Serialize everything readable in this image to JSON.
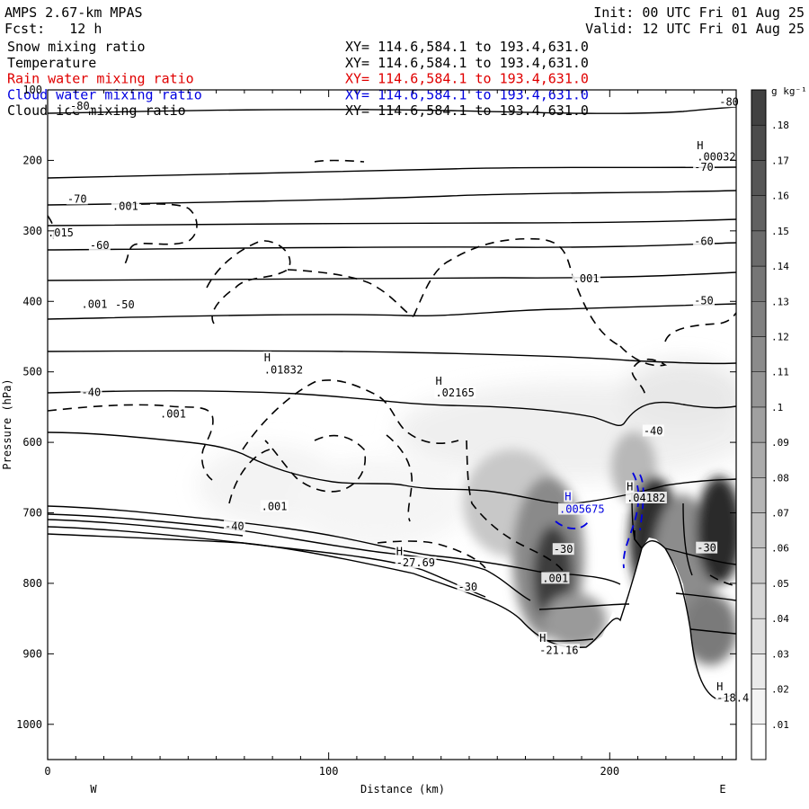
{
  "header": {
    "model": "AMPS 2.67-km MPAS",
    "forecast": "Fcst:   12 h",
    "init": "Init: 00 UTC Fri 01 Aug 25",
    "valid": "Valid: 12 UTC Fri 01 Aug 25"
  },
  "legend_rows": [
    {
      "field": "Snow mixing ratio",
      "xy": "XY= 114.6,584.1 to 193.4,631.0",
      "color": "#000000"
    },
    {
      "field": "Temperature",
      "xy": "XY= 114.6,584.1 to 193.4,631.0",
      "color": "#000000"
    },
    {
      "field": "Rain water mixing ratio",
      "xy": "XY= 114.6,584.1 to 193.4,631.0",
      "color": "#e00000"
    },
    {
      "field": "Cloud water mixing ratio",
      "xy": "XY= 114.6,584.1 to 193.4,631.0",
      "color": "#0000e0"
    },
    {
      "field": "Cloud ice mixing ratio",
      "xy": "XY= 114.6,584.1 to 193.4,631.0",
      "color": "#000000"
    }
  ],
  "chart_data": {
    "type": "cross-section",
    "xlabel": "Distance (km)",
    "ylabel": "Pressure (hPa)",
    "xlim": [
      0,
      245
    ],
    "ylim": [
      1050,
      100
    ],
    "x_ticks": [
      0,
      100,
      200
    ],
    "y_ticks": [
      100,
      200,
      300,
      400,
      500,
      600,
      700,
      800,
      900,
      1000
    ],
    "orientation": {
      "left": "W",
      "right": "E"
    },
    "colorbar": {
      "unit": "g kg⁻¹",
      "levels": [
        ".01",
        ".02",
        ".03",
        ".04",
        ".05",
        ".06",
        ".07",
        ".08",
        ".09",
        ".1",
        ".11",
        ".12",
        ".13",
        ".14",
        ".15",
        ".16",
        ".17",
        ".18"
      ],
      "shading": "grayscale"
    },
    "temperature_contour_labels": [
      {
        "text": "-80",
        "x": 8,
        "p": 128
      },
      {
        "text": "-80",
        "x": 239,
        "p": 122
      },
      {
        "text": "-70",
        "x": 7,
        "p": 260
      },
      {
        "text": "-70",
        "x": 230,
        "p": 215
      },
      {
        "text": "-60",
        "x": 15,
        "p": 326
      },
      {
        "text": "-60",
        "x": 230,
        "p": 320
      },
      {
        "text": "-50",
        "x": 24,
        "p": 410
      },
      {
        "text": "-50",
        "x": 230,
        "p": 404
      },
      {
        "text": "-40",
        "x": 12,
        "p": 534
      },
      {
        "text": "-40",
        "x": 212,
        "p": 589
      },
      {
        "text": "-40",
        "x": 63,
        "p": 724
      },
      {
        "text": "-30",
        "x": 180,
        "p": 757
      },
      {
        "text": "-30",
        "x": 146,
        "p": 810
      },
      {
        "text": "-30",
        "x": 231,
        "p": 755
      }
    ],
    "extrema_labels": [
      {
        "text": "H",
        "x": 231,
        "p": 184
      },
      {
        "text": ".00032",
        "x": 231,
        "p": 200
      },
      {
        "text": "H",
        "x": 77,
        "p": 485
      },
      {
        "text": ".01832",
        "x": 77,
        "p": 502
      },
      {
        "text": "H",
        "x": 138,
        "p": 518
      },
      {
        "text": ".02165",
        "x": 138,
        "p": 535
      },
      {
        "text": "H",
        "x": 124,
        "p": 760
      },
      {
        "text": "-27.69",
        "x": 124,
        "p": 776
      },
      {
        "text": "H",
        "x": 175,
        "p": 883
      },
      {
        "text": "-21.16",
        "x": 175,
        "p": 900
      },
      {
        "text": "H",
        "x": 238,
        "p": 952
      },
      {
        "text": "-18.4",
        "x": 238,
        "p": 968
      },
      {
        "text": "H",
        "x": 206,
        "p": 668
      },
      {
        "text": ".04182",
        "x": 206,
        "p": 684
      }
    ],
    "cloud_water_labels": [
      {
        "text": "H",
        "x": 184,
        "p": 682
      },
      {
        "text": ".005675",
        "x": 182,
        "p": 700
      }
    ],
    "ice_dash_labels": [
      {
        "text": ".001",
        "x": 23,
        "p": 270
      },
      {
        "text": ".015",
        "x": 0,
        "p": 308
      },
      {
        "text": ".001",
        "x": 12,
        "p": 409
      },
      {
        "text": ".001",
        "x": 187,
        "p": 373
      },
      {
        "text": ".001",
        "x": 40,
        "p": 565
      },
      {
        "text": ".001",
        "x": 76,
        "p": 696
      },
      {
        "text": ".001",
        "x": 176,
        "p": 798
      }
    ]
  }
}
